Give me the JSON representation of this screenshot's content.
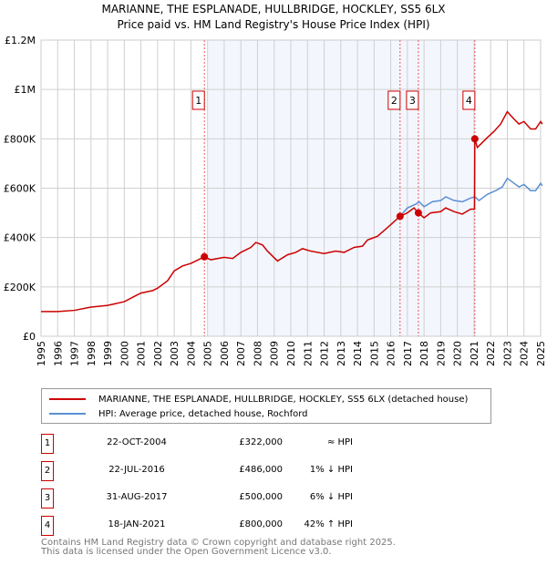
{
  "chart_data": {
    "type": "line",
    "title": "MARIANNE, THE ESPLANADE, HULLBRIDGE, HOCKLEY, SS5 6LX",
    "subtitle": "Price paid vs. HM Land Registry's House Price Index (HPI)",
    "xlim": [
      1995,
      2025
    ],
    "ylim": [
      0,
      1200000
    ],
    "x_ticks": [
      "1995",
      "1996",
      "1997",
      "1998",
      "1999",
      "2000",
      "2001",
      "2002",
      "2003",
      "2004",
      "2005",
      "2006",
      "2007",
      "2008",
      "2009",
      "2010",
      "2011",
      "2012",
      "2013",
      "2014",
      "2015",
      "2016",
      "2017",
      "2018",
      "2019",
      "2020",
      "2021",
      "2022",
      "2023",
      "2024",
      "2025"
    ],
    "y_ticks": [
      {
        "v": 0,
        "label": "£0"
      },
      {
        "v": 200000,
        "label": "£200K"
      },
      {
        "v": 400000,
        "label": "£400K"
      },
      {
        "v": 600000,
        "label": "£600K"
      },
      {
        "v": 800000,
        "label": "£800K"
      },
      {
        "v": 1000000,
        "label": "£1M"
      },
      {
        "v": 1200000,
        "label": "£1.2M"
      }
    ],
    "grid": true,
    "shaded_range": [
      2005.0,
      2021.05
    ],
    "series": [
      {
        "name": "MARIANNE, THE ESPLANADE, HULLBRIDGE, HOCKLEY, SS5 6LX (detached house)",
        "color": "#cc0000",
        "points": [
          [
            1995,
            100000
          ],
          [
            1996,
            100000
          ],
          [
            1997,
            105000
          ],
          [
            1998,
            118000
          ],
          [
            1999,
            125000
          ],
          [
            2000,
            140000
          ],
          [
            2000.7,
            165000
          ],
          [
            2001,
            175000
          ],
          [
            2001.7,
            185000
          ],
          [
            2002,
            195000
          ],
          [
            2002.6,
            225000
          ],
          [
            2003,
            265000
          ],
          [
            2003.5,
            285000
          ],
          [
            2004,
            295000
          ],
          [
            2004.8,
            322000
          ],
          [
            2005.2,
            310000
          ],
          [
            2006,
            320000
          ],
          [
            2006.5,
            315000
          ],
          [
            2007,
            340000
          ],
          [
            2007.6,
            360000
          ],
          [
            2007.9,
            380000
          ],
          [
            2008.3,
            370000
          ],
          [
            2008.6,
            345000
          ],
          [
            2009.2,
            305000
          ],
          [
            2009.8,
            330000
          ],
          [
            2010.3,
            340000
          ],
          [
            2010.7,
            355000
          ],
          [
            2011.2,
            345000
          ],
          [
            2012,
            335000
          ],
          [
            2012.7,
            345000
          ],
          [
            2013.2,
            340000
          ],
          [
            2013.8,
            360000
          ],
          [
            2014.3,
            365000
          ],
          [
            2014.6,
            390000
          ],
          [
            2015.2,
            405000
          ],
          [
            2015.8,
            440000
          ],
          [
            2016.56,
            486000
          ],
          [
            2017,
            500000
          ],
          [
            2017.4,
            520000
          ],
          [
            2017.66,
            500000
          ],
          [
            2018,
            480000
          ],
          [
            2018.4,
            500000
          ],
          [
            2019,
            505000
          ],
          [
            2019.3,
            520000
          ],
          [
            2019.8,
            505000
          ],
          [
            2020.3,
            495000
          ],
          [
            2020.8,
            515000
          ],
          [
            2021.03,
            515000
          ],
          [
            2021.05,
            800000
          ],
          [
            2021.2,
            765000
          ],
          [
            2021.8,
            805000
          ],
          [
            2022.2,
            830000
          ],
          [
            2022.6,
            860000
          ],
          [
            2023,
            910000
          ],
          [
            2023.4,
            880000
          ],
          [
            2023.7,
            860000
          ],
          [
            2024,
            870000
          ],
          [
            2024.4,
            840000
          ],
          [
            2024.7,
            840000
          ],
          [
            2025,
            870000
          ],
          [
            2025.1,
            860000
          ]
        ]
      },
      {
        "name": "HPI: Average price, detached house, Rochford",
        "color": "#5b8fd4",
        "points": [
          [
            2016.56,
            486000
          ],
          [
            2017,
            520000
          ],
          [
            2017.5,
            535000
          ],
          [
            2017.7,
            545000
          ],
          [
            2018,
            525000
          ],
          [
            2018.5,
            545000
          ],
          [
            2019,
            550000
          ],
          [
            2019.3,
            565000
          ],
          [
            2019.8,
            550000
          ],
          [
            2020.3,
            545000
          ],
          [
            2020.8,
            560000
          ],
          [
            2021.05,
            565000
          ],
          [
            2021.3,
            550000
          ],
          [
            2021.8,
            575000
          ],
          [
            2022.3,
            590000
          ],
          [
            2022.7,
            605000
          ],
          [
            2023,
            640000
          ],
          [
            2023.4,
            620000
          ],
          [
            2023.7,
            605000
          ],
          [
            2024,
            615000
          ],
          [
            2024.4,
            590000
          ],
          [
            2024.7,
            590000
          ],
          [
            2025,
            620000
          ],
          [
            2025.1,
            610000
          ]
        ]
      }
    ],
    "sales": [
      {
        "n": "1",
        "x": 2004.81,
        "price": 322000
      },
      {
        "n": "2",
        "x": 2016.56,
        "price": 486000
      },
      {
        "n": "3",
        "x": 2017.66,
        "price": 500000
      },
      {
        "n": "4",
        "x": 2021.05,
        "price": 800000
      }
    ]
  },
  "legend": {
    "property": "MARIANNE, THE ESPLANADE, HULLBRIDGE, HOCKLEY, SS5 6LX (detached house)",
    "hpi": "HPI: Average price, detached house, Rochford"
  },
  "table": [
    {
      "n": "1",
      "date": "22-OCT-2004",
      "price": "£322,000",
      "hpi": "≈ HPI"
    },
    {
      "n": "2",
      "date": "22-JUL-2016",
      "price": "£486,000",
      "hpi": "1% ↓ HPI"
    },
    {
      "n": "3",
      "date": "31-AUG-2017",
      "price": "£500,000",
      "hpi": "6% ↓ HPI"
    },
    {
      "n": "4",
      "date": "18-JAN-2021",
      "price": "£800,000",
      "hpi": "42% ↑ HPI"
    }
  ],
  "footer": {
    "line1": "Contains HM Land Registry data © Crown copyright and database right 2025.",
    "line2": "This data is licensed under the Open Government Licence v3.0."
  }
}
